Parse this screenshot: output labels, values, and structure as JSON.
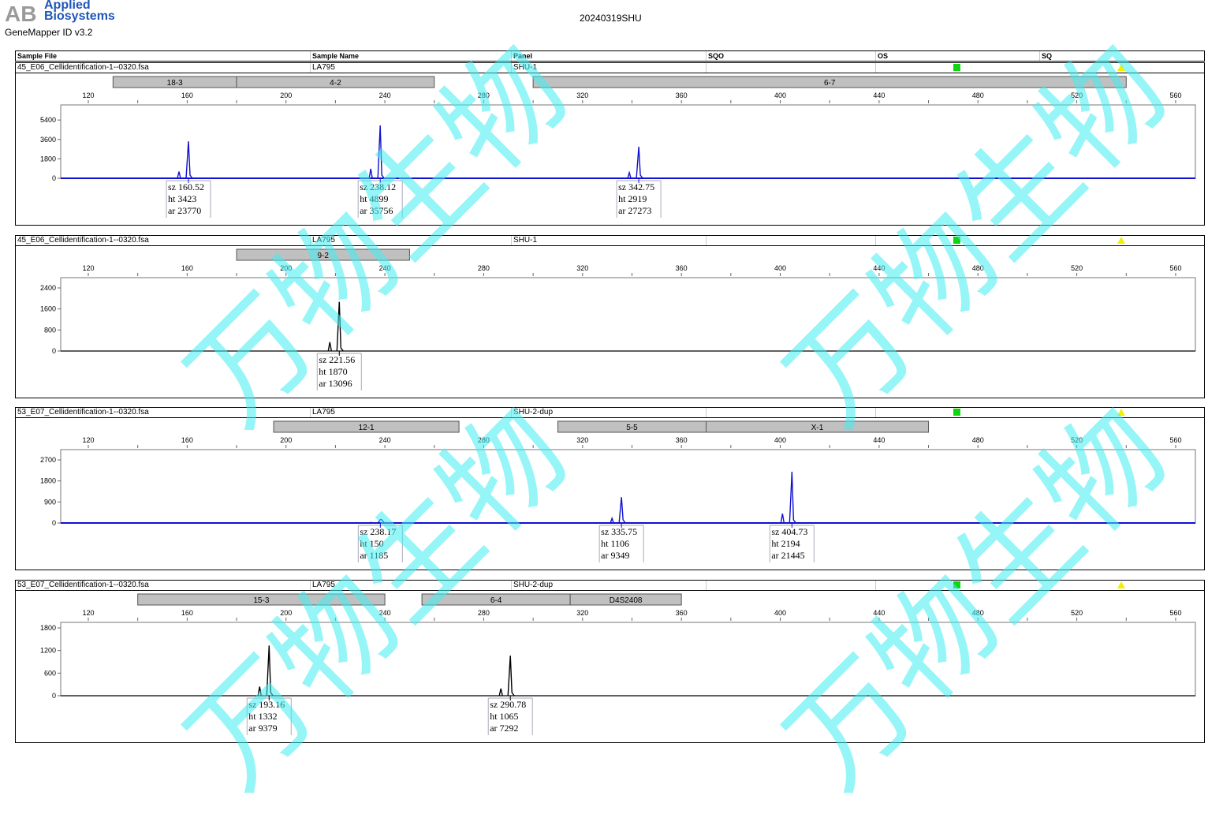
{
  "header": {
    "brand": "Applied Biosystems",
    "app_version": "GeneMapper ID v3.2",
    "report_title": "20240319SHU",
    "watermark": "万物生物"
  },
  "columns": [
    "Sample File",
    "Sample Name",
    "Panel",
    "SQO",
    "OS",
    "SQ"
  ],
  "colors": {
    "blue_trace": "#1010d0",
    "black_trace": "#000000",
    "bin": "#c0c0c0",
    "sqo_ok": "#11d411",
    "sq_warn": "#f3ef00"
  },
  "chart_data": [
    {
      "type": "line",
      "sample_file": "45_E06_Cellidentification-1--0320.fsa",
      "sample_name": "LA795",
      "panel": "SHU-1",
      "os_status": "green-square",
      "sq_status": "yellow-triangle",
      "trace_color": "blue",
      "xlim": [
        120,
        580
      ],
      "x_ticks": [
        120,
        160,
        200,
        240,
        280,
        320,
        360,
        400,
        440,
        480,
        520,
        560
      ],
      "ylim": [
        0,
        6800
      ],
      "y_ticks": [
        0,
        1800,
        3600,
        5400
      ],
      "bins": [
        {
          "label": "18-3",
          "range": [
            130,
            180
          ]
        },
        {
          "label": "4-2",
          "range": [
            180,
            260
          ]
        },
        {
          "label": "6-7",
          "range": [
            300,
            540
          ]
        }
      ],
      "peaks": [
        {
          "sz": "160.52",
          "ht": "3423",
          "ar": "23770"
        },
        {
          "sz": "238.12",
          "ht": "4899",
          "ar": "35756"
        },
        {
          "sz": "342.75",
          "ht": "2919",
          "ar": "27273"
        }
      ]
    },
    {
      "type": "line",
      "sample_file": "45_E06_Cellidentification-1--0320.fsa",
      "sample_name": "LA795",
      "panel": "SHU-1",
      "os_status": "green-square",
      "sq_status": "yellow-triangle",
      "trace_color": "black",
      "xlim": [
        120,
        580
      ],
      "x_ticks": [
        120,
        160,
        200,
        240,
        280,
        320,
        360,
        400,
        440,
        480,
        520,
        560
      ],
      "ylim": [
        0,
        2790
      ],
      "y_ticks": [
        0,
        800,
        1600,
        2400
      ],
      "bins": [
        {
          "label": "9-2",
          "range": [
            180,
            250
          ]
        }
      ],
      "peaks": [
        {
          "sz": "221.56",
          "ht": "1870",
          "ar": "13096"
        }
      ]
    },
    {
      "type": "line",
      "sample_file": "53_E07_Cellidentification-1--0320.fsa",
      "sample_name": "LA795",
      "panel": "SHU-2-dup",
      "os_status": "green-square",
      "sq_status": "yellow-triangle",
      "trace_color": "blue",
      "xlim": [
        120,
        580
      ],
      "x_ticks": [
        120,
        160,
        200,
        240,
        280,
        320,
        360,
        400,
        440,
        480,
        520,
        560
      ],
      "ylim": [
        0,
        3140
      ],
      "y_ticks": [
        0,
        900,
        1800,
        2700
      ],
      "bins": [
        {
          "label": "12-1",
          "range": [
            195,
            270
          ]
        },
        {
          "label": "5-5",
          "range": [
            310,
            370
          ]
        },
        {
          "label": "X-1",
          "range": [
            370,
            460
          ]
        }
      ],
      "peaks": [
        {
          "sz": "238.17",
          "ht": "150",
          "ar": "1185"
        },
        {
          "sz": "335.75",
          "ht": "1106",
          "ar": "9349"
        },
        {
          "sz": "404.73",
          "ht": "2194",
          "ar": "21445"
        }
      ]
    },
    {
      "type": "line",
      "sample_file": "53_E07_Cellidentification-1--0320.fsa",
      "sample_name": "LA795",
      "panel": "SHU-2-dup",
      "os_status": "green-square",
      "sq_status": "yellow-triangle",
      "trace_color": "black",
      "xlim": [
        120,
        580
      ],
      "x_ticks": [
        120,
        160,
        200,
        240,
        280,
        320,
        360,
        400,
        440,
        480,
        520,
        560
      ],
      "ylim": [
        0,
        1947
      ],
      "y_ticks": [
        0,
        600,
        1200,
        1800
      ],
      "bins": [
        {
          "label": "15-3",
          "range": [
            140,
            240
          ]
        },
        {
          "label": "6-4",
          "range": [
            255,
            315
          ]
        },
        {
          "label": "D4S2408",
          "range": [
            315,
            360
          ]
        }
      ],
      "peaks": [
        {
          "sz": "193.16",
          "ht": "1332",
          "ar": "9379"
        },
        {
          "sz": "290.78",
          "ht": "1065",
          "ar": "7292"
        }
      ]
    }
  ]
}
